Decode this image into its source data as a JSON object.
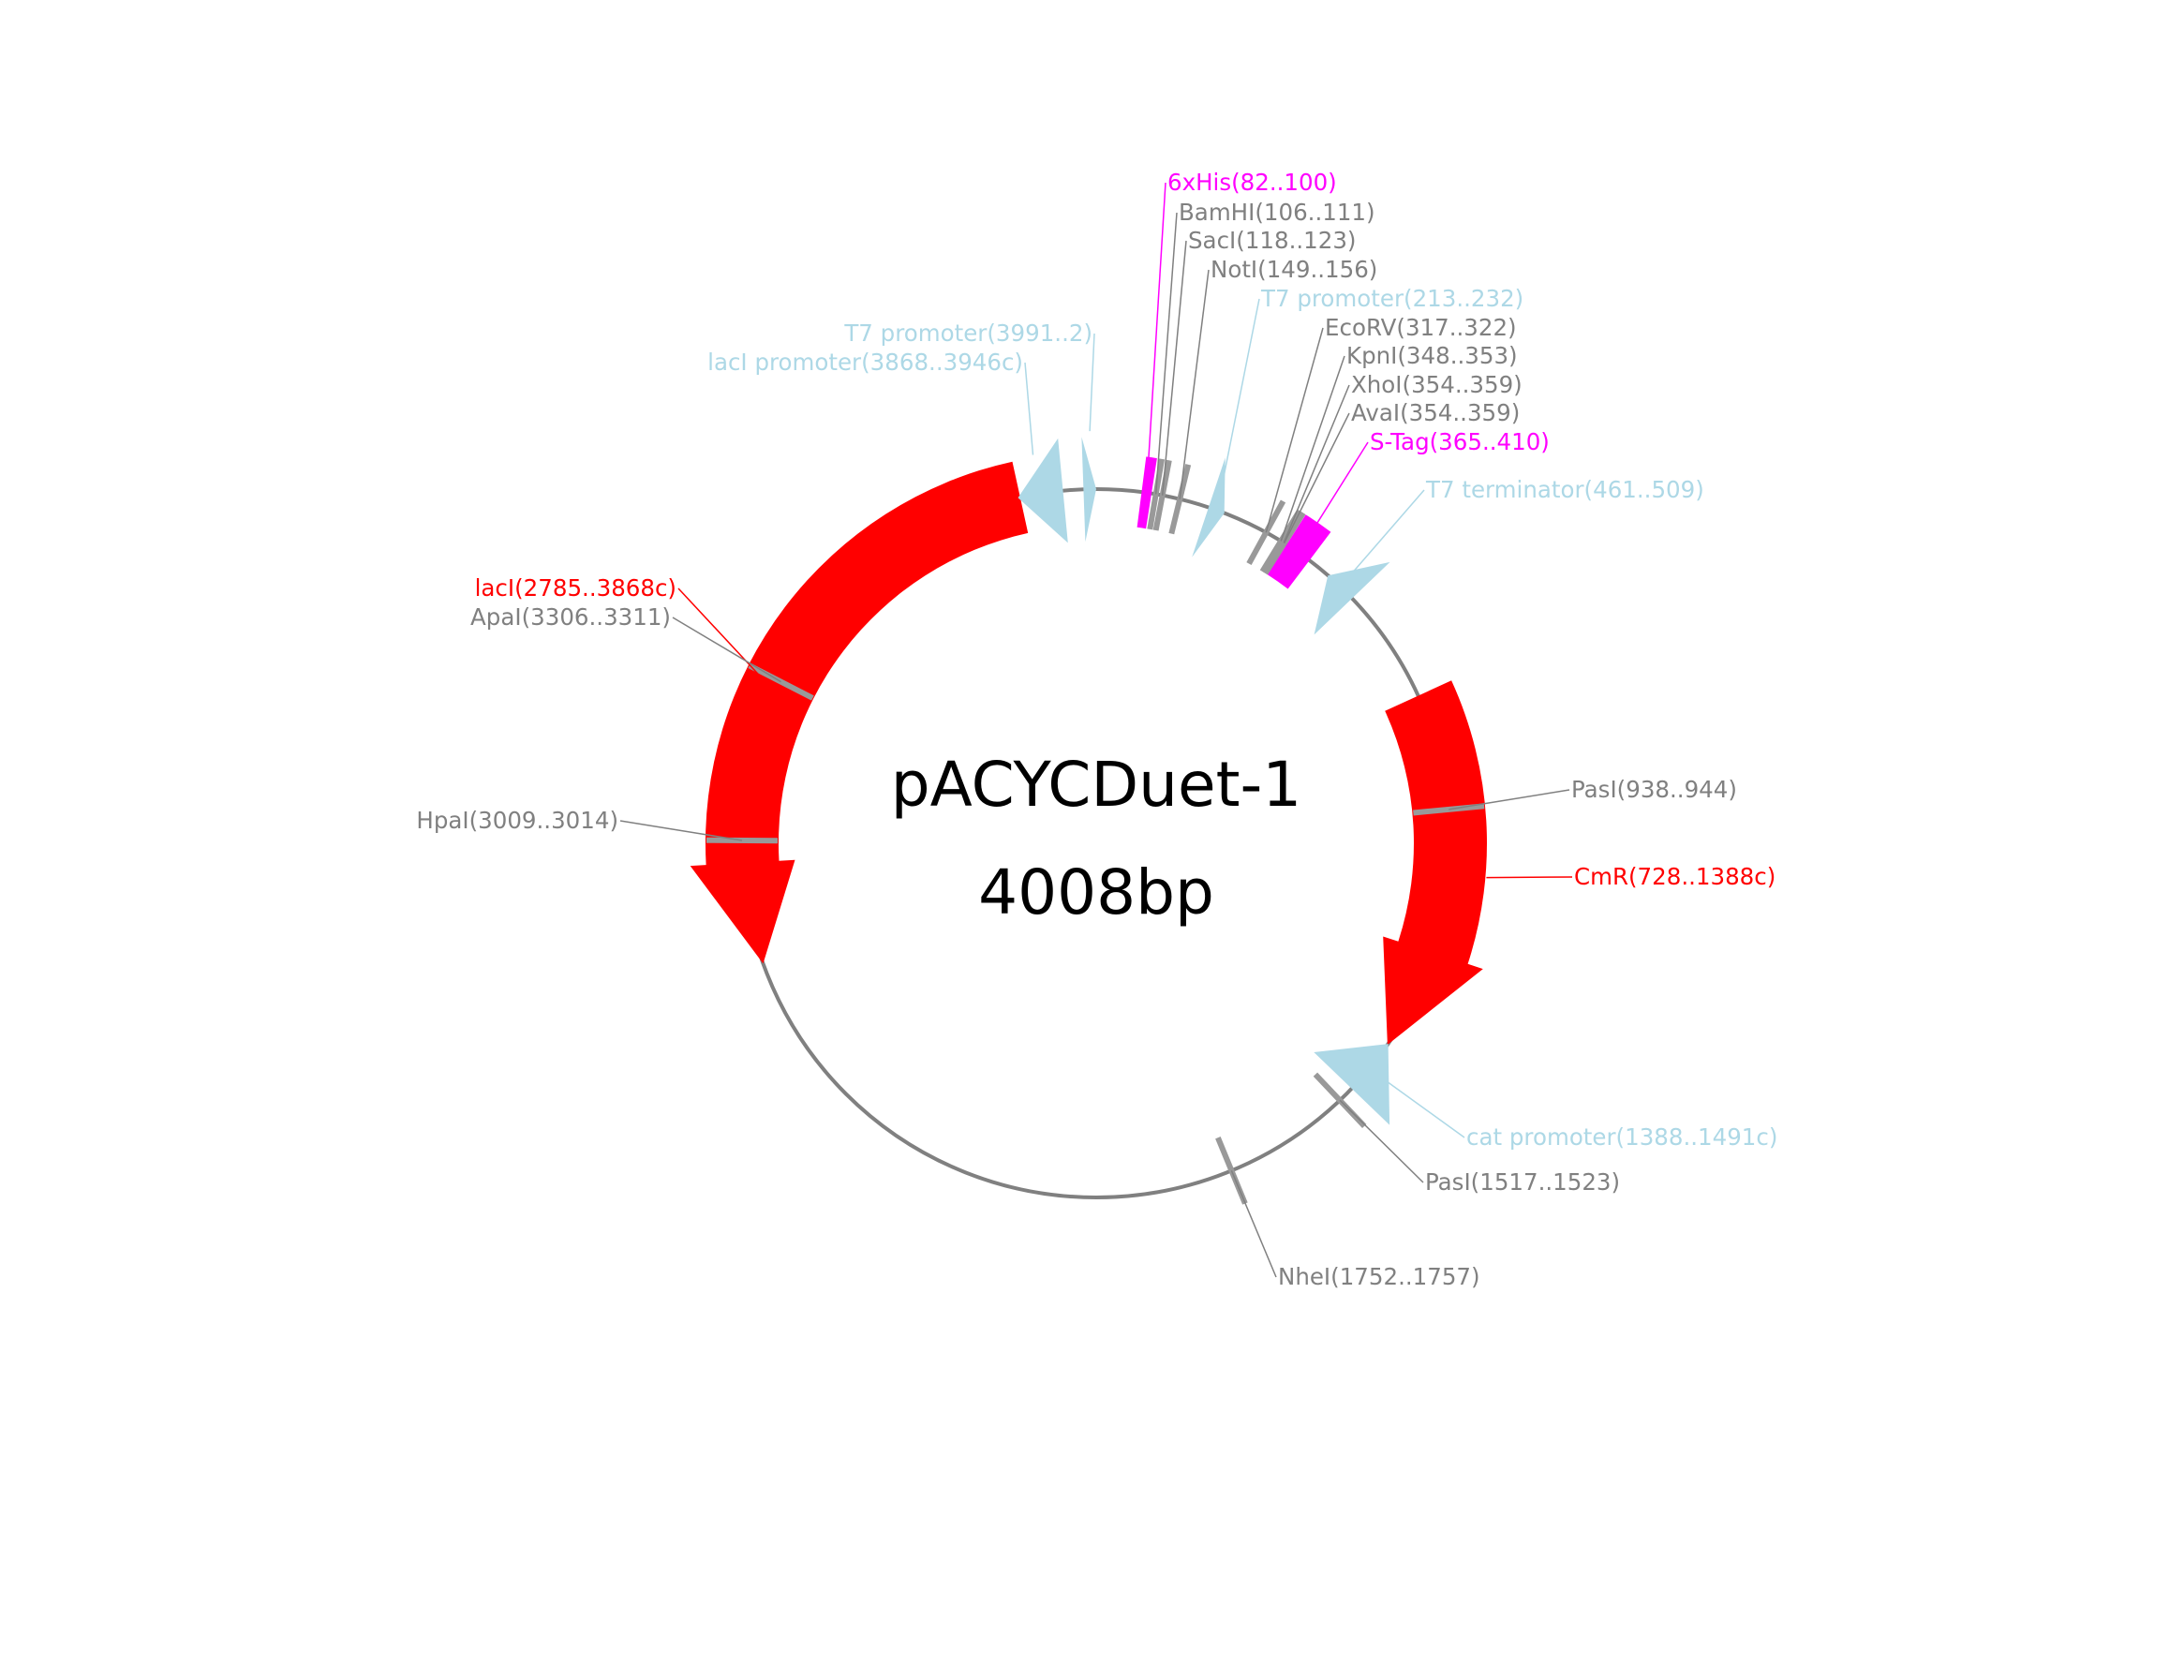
{
  "plasmid": {
    "name": "pACYCDuet-1",
    "size_label": "4008bp",
    "length_bp": 4008
  },
  "colors": {
    "backbone": "#808080",
    "cds": "#ff0000",
    "regulatory": "#add8e6",
    "tag": "#ff00ff",
    "restriction_site": "#999999",
    "restriction_label": "#808080"
  },
  "features": [
    {
      "id": "laci",
      "label": "lacI(2785..3868c)",
      "type": "cds",
      "start": 2785,
      "end": 3868,
      "strand": -1,
      "color": "#ff0000"
    },
    {
      "id": "cmr",
      "label": "CmR(728..1388c)",
      "type": "cds",
      "start": 728,
      "end": 1388,
      "strand": -1,
      "color": "#ff0000"
    },
    {
      "id": "t7-promoter-1",
      "label": "T7 promoter(3991..2)",
      "type": "regulatory",
      "start": 3991,
      "end": 2,
      "strand": 1,
      "color": "#add8e6"
    },
    {
      "id": "laci-promoter",
      "label": "lacI promoter(3868..3946c)",
      "type": "regulatory",
      "start": 3868,
      "end": 3946,
      "strand": -1,
      "color": "#add8e6"
    },
    {
      "id": "t7-promoter-2",
      "label": "T7 promoter(213..232)",
      "type": "regulatory",
      "start": 213,
      "end": 232,
      "strand": 1,
      "color": "#add8e6"
    },
    {
      "id": "t7-terminator",
      "label": "T7 terminator(461..509)",
      "type": "regulatory",
      "start": 461,
      "end": 509,
      "strand": -1,
      "color": "#add8e6"
    },
    {
      "id": "cat-promoter",
      "label": "cat promoter(1388..1491c)",
      "type": "regulatory",
      "start": 1388,
      "end": 1491,
      "strand": -1,
      "color": "#add8e6"
    },
    {
      "id": "6xhis",
      "label": "6xHis(82..100)",
      "type": "tag",
      "start": 82,
      "end": 100,
      "strand": 0,
      "color": "#ff00ff"
    },
    {
      "id": "s-tag",
      "label": "S-Tag(365..410)",
      "type": "tag",
      "start": 365,
      "end": 410,
      "strand": 0,
      "color": "#ff00ff"
    }
  ],
  "restriction_sites": [
    {
      "id": "bamhi",
      "label": "BamHI(106..111)",
      "pos": 108
    },
    {
      "id": "saci",
      "label": "SacI(118..123)",
      "pos": 120
    },
    {
      "id": "noti",
      "label": "NotI(149..156)",
      "pos": 152
    },
    {
      "id": "ecorv",
      "label": "EcoRV(317..322)",
      "pos": 319
    },
    {
      "id": "kpni",
      "label": "KpnI(348..353)",
      "pos": 350
    },
    {
      "id": "xhoi",
      "label": "XhoI(354..359)",
      "pos": 356
    },
    {
      "id": "avai",
      "label": "AvaI(354..359)",
      "pos": 357
    },
    {
      "id": "pasi-938",
      "label": "PasI(938..944)",
      "pos": 941
    },
    {
      "id": "pasi-1517",
      "label": "PasI(1517..1523)",
      "pos": 1520
    },
    {
      "id": "nhei",
      "label": "NheI(1752..1757)",
      "pos": 1754
    },
    {
      "id": "hpai",
      "label": "HpaI(3009..3014)",
      "pos": 3011
    },
    {
      "id": "apai",
      "label": "ApaI(3306..3311)",
      "pos": 3308
    }
  ]
}
